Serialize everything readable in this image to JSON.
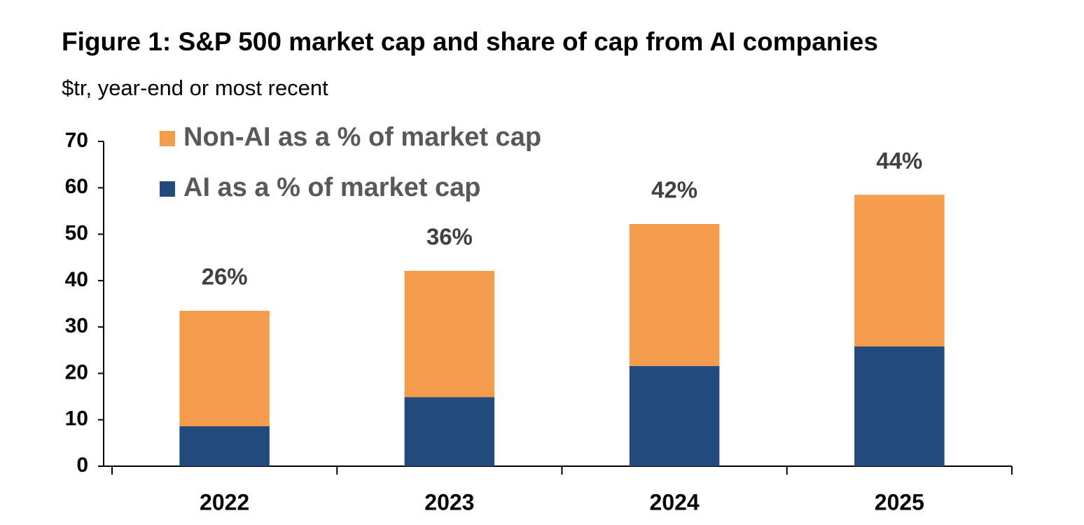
{
  "chart_data": {
    "type": "stacked_bar",
    "title": "Figure 1: S&P 500 market cap and share of cap from AI companies",
    "subtitle": "$tr, year-end or most recent",
    "categories": [
      "2022",
      "2023",
      "2024",
      "2025"
    ],
    "series": [
      {
        "name": "AI as a % of market cap",
        "color": "#234a7c",
        "values": [
          8.6,
          14.9,
          21.6,
          25.8
        ]
      },
      {
        "name": "Non-AI as a % of market cap",
        "color": "#f59c4c",
        "values": [
          24.9,
          27.2,
          30.6,
          32.7
        ]
      }
    ],
    "annotations": [
      "26%",
      "36%",
      "42%",
      "44%"
    ],
    "ylim": [
      0,
      70
    ],
    "yticks": [
      0,
      10,
      20,
      30,
      40,
      50,
      60,
      70
    ],
    "grid": false,
    "legend": "top-left"
  }
}
